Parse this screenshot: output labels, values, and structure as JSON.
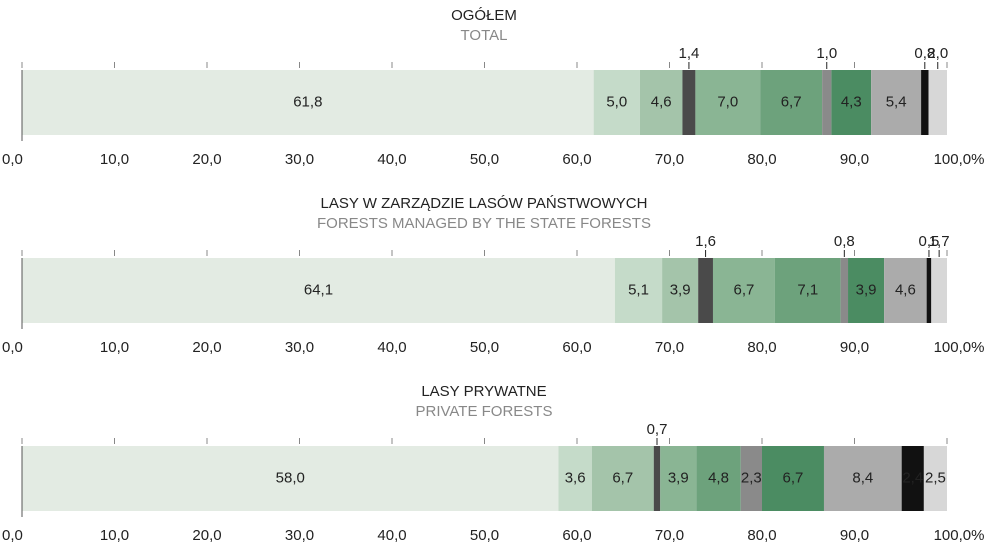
{
  "chart_data": [
    {
      "type": "bar",
      "title": "OGÓŁEM",
      "subtitle": "TOTAL",
      "values": [
        61.8,
        5.0,
        4.6,
        1.4,
        7.0,
        6.7,
        1.0,
        4.3,
        5.4,
        0.8,
        2.0
      ],
      "value_labels": [
        "61,8",
        "5,0",
        "4,6",
        "1,4",
        "7,0",
        "6,7",
        "1,0",
        "4,3",
        "5,4",
        "0,8",
        "2,0"
      ],
      "colors": [
        "#e3ebe3",
        "#c5dbc9",
        "#a4c4aa",
        "#4a4a4a",
        "#8ab594",
        "#6da27c",
        "#8a8a8a",
        "#4b8c62",
        "#ababab",
        "#111111",
        "#d7d7d7"
      ],
      "label_colors": [
        "#222",
        "#222",
        "#222",
        "#222",
        "#222",
        "#222",
        "#222",
        "#ffffff",
        "#222",
        "#222",
        "#222"
      ],
      "xlim": [
        0,
        100
      ],
      "xticks": [
        {
          "value": 0,
          "label": "0,0"
        },
        {
          "value": 10,
          "label": "10,0"
        },
        {
          "value": 20,
          "label": "20,0"
        },
        {
          "value": 30,
          "label": "30,0"
        },
        {
          "value": 40,
          "label": "40,0"
        },
        {
          "value": 50,
          "label": "50,0"
        },
        {
          "value": 60,
          "label": "60,0"
        },
        {
          "value": 70,
          "label": "70,0"
        },
        {
          "value": 80,
          "label": "80,0"
        },
        {
          "value": 90,
          "label": "90,0"
        },
        {
          "value": 100,
          "label": "100,0%"
        }
      ]
    },
    {
      "type": "bar",
      "title": "LASY W ZARZĄDZIE LASÓW PAŃSTWOWYCH",
      "subtitle": "FORESTS MANAGED BY THE STATE FORESTS",
      "values": [
        64.1,
        5.1,
        3.9,
        1.6,
        6.7,
        7.1,
        0.8,
        3.9,
        4.6,
        0.5,
        1.7
      ],
      "value_labels": [
        "64,1",
        "5,1",
        "3,9",
        "1,6",
        "6,7",
        "7,1",
        "0,8",
        "3,9",
        "4,6",
        "0,5",
        "1,7"
      ],
      "colors": [
        "#e3ebe3",
        "#c5dbc9",
        "#a4c4aa",
        "#4a4a4a",
        "#8ab594",
        "#6da27c",
        "#8a8a8a",
        "#4b8c62",
        "#ababab",
        "#111111",
        "#d7d7d7"
      ],
      "label_colors": [
        "#222",
        "#222",
        "#222",
        "#222",
        "#222",
        "#222",
        "#222",
        "#ffffff",
        "#222",
        "#222",
        "#222"
      ],
      "xlim": [
        0,
        100
      ],
      "xticks": [
        {
          "value": 0,
          "label": "0,0"
        },
        {
          "value": 10,
          "label": "10,0"
        },
        {
          "value": 20,
          "label": "20,0"
        },
        {
          "value": 30,
          "label": "30,0"
        },
        {
          "value": 40,
          "label": "40,0"
        },
        {
          "value": 50,
          "label": "50,0"
        },
        {
          "value": 60,
          "label": "60,0"
        },
        {
          "value": 70,
          "label": "70,0"
        },
        {
          "value": 80,
          "label": "80,0"
        },
        {
          "value": 90,
          "label": "90,0"
        },
        {
          "value": 100,
          "label": "100,0%"
        }
      ]
    },
    {
      "type": "bar",
      "title": "LASY PRYWATNE",
      "subtitle": "PRIVATE FORESTS",
      "values": [
        58.0,
        3.6,
        6.7,
        0.7,
        3.9,
        4.8,
        2.3,
        6.7,
        8.4,
        2.4,
        2.5
      ],
      "value_labels": [
        "58,0",
        "3,6",
        "6,7",
        "0,7",
        "3,9",
        "4,8",
        "2,3",
        "6,7",
        "8,4",
        "2,4",
        "2,5"
      ],
      "colors": [
        "#e3ebe3",
        "#c5dbc9",
        "#a4c4aa",
        "#4a4a4a",
        "#8ab594",
        "#6da27c",
        "#8a8a8a",
        "#4b8c62",
        "#ababab",
        "#111111",
        "#d7d7d7"
      ],
      "label_colors": [
        "#222",
        "#222",
        "#222",
        "#222",
        "#222",
        "#222",
        "#ffffff",
        "#ffffff",
        "#222",
        "#222",
        "#222"
      ],
      "xlim": [
        0,
        100
      ],
      "xticks": [
        {
          "value": 0,
          "label": "0,0"
        },
        {
          "value": 10,
          "label": "10,0"
        },
        {
          "value": 20,
          "label": "20,0"
        },
        {
          "value": 30,
          "label": "30,0"
        },
        {
          "value": 40,
          "label": "40,0"
        },
        {
          "value": 50,
          "label": "50,0"
        },
        {
          "value": 60,
          "label": "60,0"
        },
        {
          "value": 70,
          "label": "70,0"
        },
        {
          "value": 80,
          "label": "80,0"
        },
        {
          "value": 90,
          "label": "90,0"
        },
        {
          "value": 100,
          "label": "100,0%"
        }
      ]
    }
  ]
}
